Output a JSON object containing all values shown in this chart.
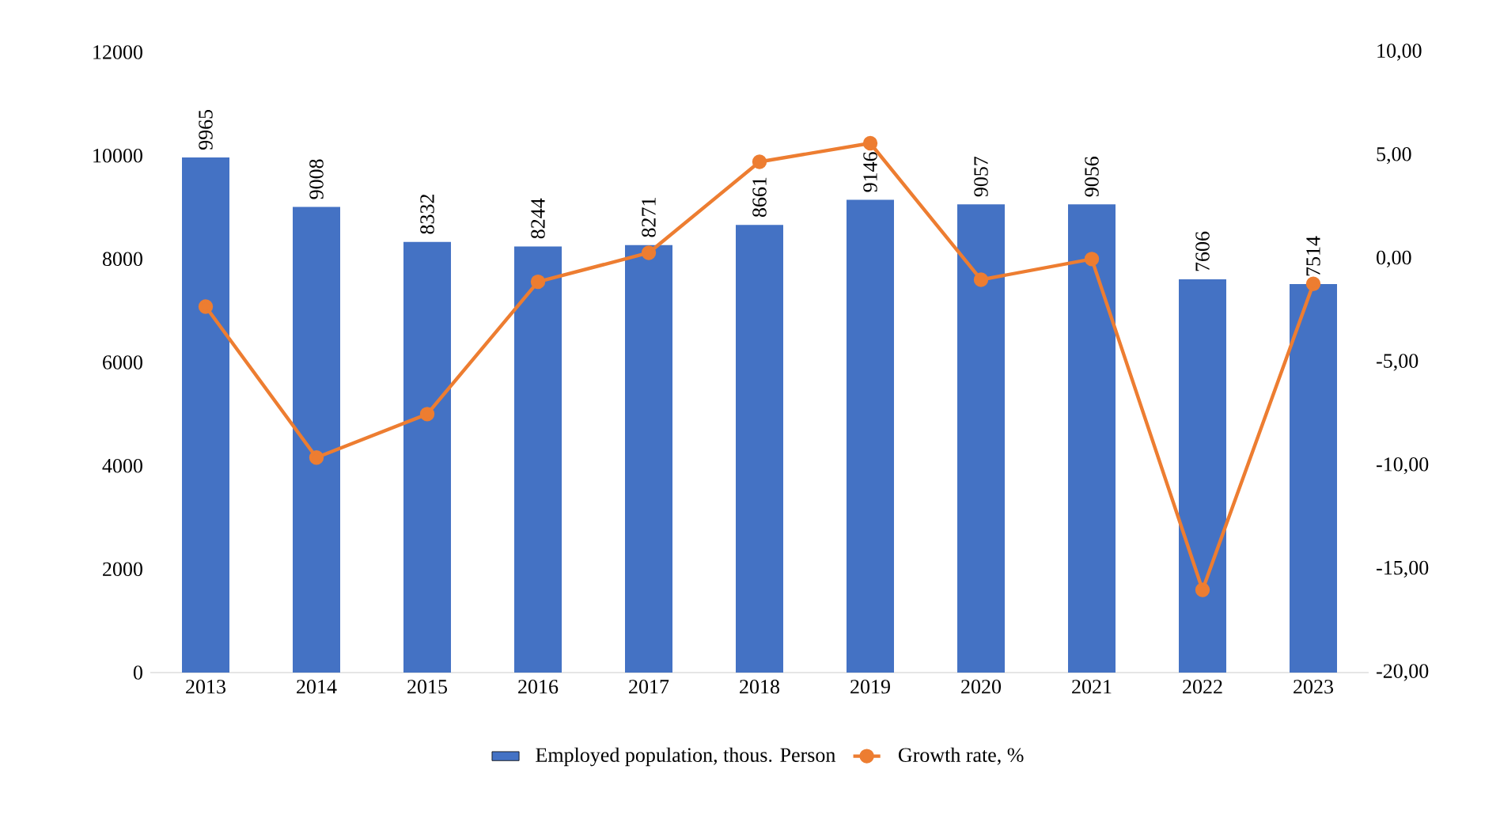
{
  "chart_data": {
    "type": "bar",
    "categories": [
      "2013",
      "2014",
      "2015",
      "2016",
      "2017",
      "2018",
      "2019",
      "2020",
      "2021",
      "2022",
      "2023"
    ],
    "series": [
      {
        "name": "Employed population, thous. Person",
        "color": "#4472c4",
        "values": [
          9965,
          9008,
          8332,
          8244,
          8271,
          8661,
          9146,
          9057,
          9056,
          7606,
          7514
        ],
        "value_labels": [
          "9965",
          "9008",
          "8332",
          "8244",
          "8271",
          "8661",
          "9146",
          "9057",
          "9056",
          "7606",
          "7514"
        ]
      },
      {
        "name": "Growth rate, %",
        "type": "line",
        "axis": "y2",
        "color": "#ed7d31",
        "marker": "circle",
        "values": [
          -2.3,
          -9.6,
          -7.5,
          -1.1,
          0.3,
          4.7,
          5.6,
          -1.0,
          0.0,
          -16.0,
          -1.2
        ]
      }
    ],
    "ylim": [
      0,
      12000
    ],
    "yticks": [
      0,
      2000,
      4000,
      6000,
      8000,
      10000,
      12000
    ],
    "y2lim": [
      -20,
      10
    ],
    "y2ticks": [
      {
        "value": -20,
        "label": "-20,00"
      },
      {
        "value": -15,
        "label": "-15,00"
      },
      {
        "value": -10,
        "label": "-10,00"
      },
      {
        "value": -5,
        "label": "-5,00"
      },
      {
        "value": 0,
        "label": "0,00"
      },
      {
        "value": 5,
        "label": "5,00"
      },
      {
        "value": 10,
        "label": "10,00"
      }
    ],
    "legend": "bottom"
  }
}
